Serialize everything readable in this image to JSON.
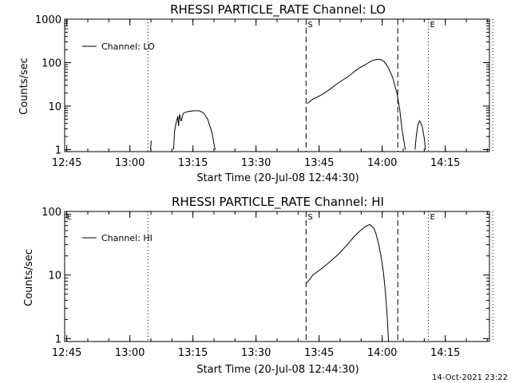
{
  "footer_timestamp": "14-Oct-2021 23:22",
  "chart_data": [
    {
      "type": "line",
      "title": "RHESSI PARTICLE_RATE Channel: LO",
      "xlabel": "Start Time (20-Jul-08 12:44:30)",
      "ylabel": "Counts/sec",
      "yscale": "log",
      "ylim": [
        0.9,
        1000
      ],
      "xlim_min": [
        0,
        101
      ],
      "x_tick_labels": [
        "12:45",
        "13:00",
        "13:15",
        "13:30",
        "13:45",
        "14:00",
        "14:15"
      ],
      "y_tick_labels": [
        "1",
        "10",
        "100",
        "1000"
      ],
      "y_ticks": [
        1,
        10,
        100,
        1000
      ],
      "legend": "top-left",
      "markers": [
        {
          "x": 19.8,
          "style": "dotted",
          "label": ""
        },
        {
          "x": 57.4,
          "style": "dashed",
          "label": "S"
        },
        {
          "x": 79.2,
          "style": "dashed",
          "label": ""
        },
        {
          "x": 86.5,
          "style": "dotted",
          "label": "E"
        },
        {
          "x": 101.8,
          "style": "dotted",
          "label": ""
        }
      ],
      "series": [
        {
          "name": "Channel: LO",
          "segments": [
            [
              [
                20.4,
                1.0
              ],
              [
                20.6,
                1.6
              ]
            ],
            [
              [
                25.9,
                1.0
              ],
              [
                26.1,
                2.5
              ],
              [
                26.4,
                3.8
              ],
              [
                26.9,
                5.8
              ],
              [
                27.1,
                3.5
              ],
              [
                27.3,
                6.5
              ],
              [
                27.7,
                4.5
              ],
              [
                28.2,
                6.8
              ],
              [
                29.0,
                7.4
              ],
              [
                30.5,
                7.8
              ],
              [
                32.0,
                7.8
              ],
              [
                33.0,
                7.0
              ],
              [
                34.0,
                5.0
              ],
              [
                35.0,
                2.5
              ],
              [
                35.6,
                1.2
              ],
              [
                35.8,
                1.0
              ]
            ],
            [
              [
                57.7,
                11.5
              ],
              [
                59.0,
                14.5
              ],
              [
                61.0,
                18.0
              ],
              [
                63.0,
                24.0
              ],
              [
                65.0,
                34.0
              ],
              [
                67.0,
                45.0
              ],
              [
                68.5,
                58.0
              ],
              [
                70.0,
                75.0
              ],
              [
                71.5,
                90.0
              ],
              [
                73.0,
                110.0
              ],
              [
                74.0,
                118.0
              ],
              [
                75.0,
                120.0
              ],
              [
                76.0,
                105.0
              ],
              [
                77.0,
                75.0
              ],
              [
                78.0,
                45.0
              ],
              [
                79.0,
                20.0
              ],
              [
                79.7,
                8.0
              ],
              [
                80.2,
                3.0
              ],
              [
                80.8,
                1.3
              ],
              [
                81.0,
                1.0
              ]
            ],
            [
              [
                83.3,
                1.0
              ],
              [
                83.6,
                2.0
              ],
              [
                84.0,
                3.8
              ],
              [
                84.4,
                4.6
              ],
              [
                85.0,
                3.5
              ],
              [
                85.5,
                1.8
              ],
              [
                85.8,
                1.0
              ]
            ]
          ]
        }
      ]
    },
    {
      "type": "line",
      "title": "RHESSI PARTICLE_RATE Channel: HI",
      "xlabel": "Start Time (20-Jul-08 12:44:30)",
      "ylabel": "Counts/sec",
      "yscale": "log",
      "ylim": [
        0.9,
        100
      ],
      "xlim_min": [
        0,
        101
      ],
      "x_tick_labels": [
        "12:45",
        "13:00",
        "13:15",
        "13:30",
        "13:45",
        "14:00",
        "14:15"
      ],
      "y_tick_labels": [
        "1",
        "10",
        "100"
      ],
      "y_ticks": [
        1,
        10,
        100
      ],
      "legend": "top-left",
      "markers": [
        {
          "x": 19.8,
          "style": "dotted",
          "label": ""
        },
        {
          "x": 57.4,
          "style": "dashed",
          "label": "S"
        },
        {
          "x": 79.2,
          "style": "dashed",
          "label": ""
        },
        {
          "x": 86.5,
          "style": "dotted",
          "label": "E"
        },
        {
          "x": 101.8,
          "style": "dotted",
          "label": ""
        }
      ],
      "extra_labels": [
        {
          "x": 0.3,
          "label": "E"
        }
      ],
      "series": [
        {
          "name": "Channel: HI",
          "segments": [
            [
              [
                57.6,
                7.5
              ],
              [
                59.0,
                10.0
              ],
              [
                61.0,
                12.5
              ],
              [
                63.0,
                16.0
              ],
              [
                65.0,
                21.0
              ],
              [
                67.0,
                29.0
              ],
              [
                68.5,
                38.0
              ],
              [
                70.0,
                48.0
              ],
              [
                71.5,
                58.0
              ],
              [
                72.5,
                62.0
              ],
              [
                73.5,
                55.0
              ],
              [
                74.0,
                45.0
              ],
              [
                74.6,
                32.0
              ],
              [
                75.2,
                20.0
              ],
              [
                75.8,
                11.0
              ],
              [
                76.3,
                5.0
              ],
              [
                76.7,
                2.2
              ],
              [
                76.9,
                1.2
              ],
              [
                77.0,
                0.9
              ]
            ]
          ]
        }
      ]
    }
  ]
}
